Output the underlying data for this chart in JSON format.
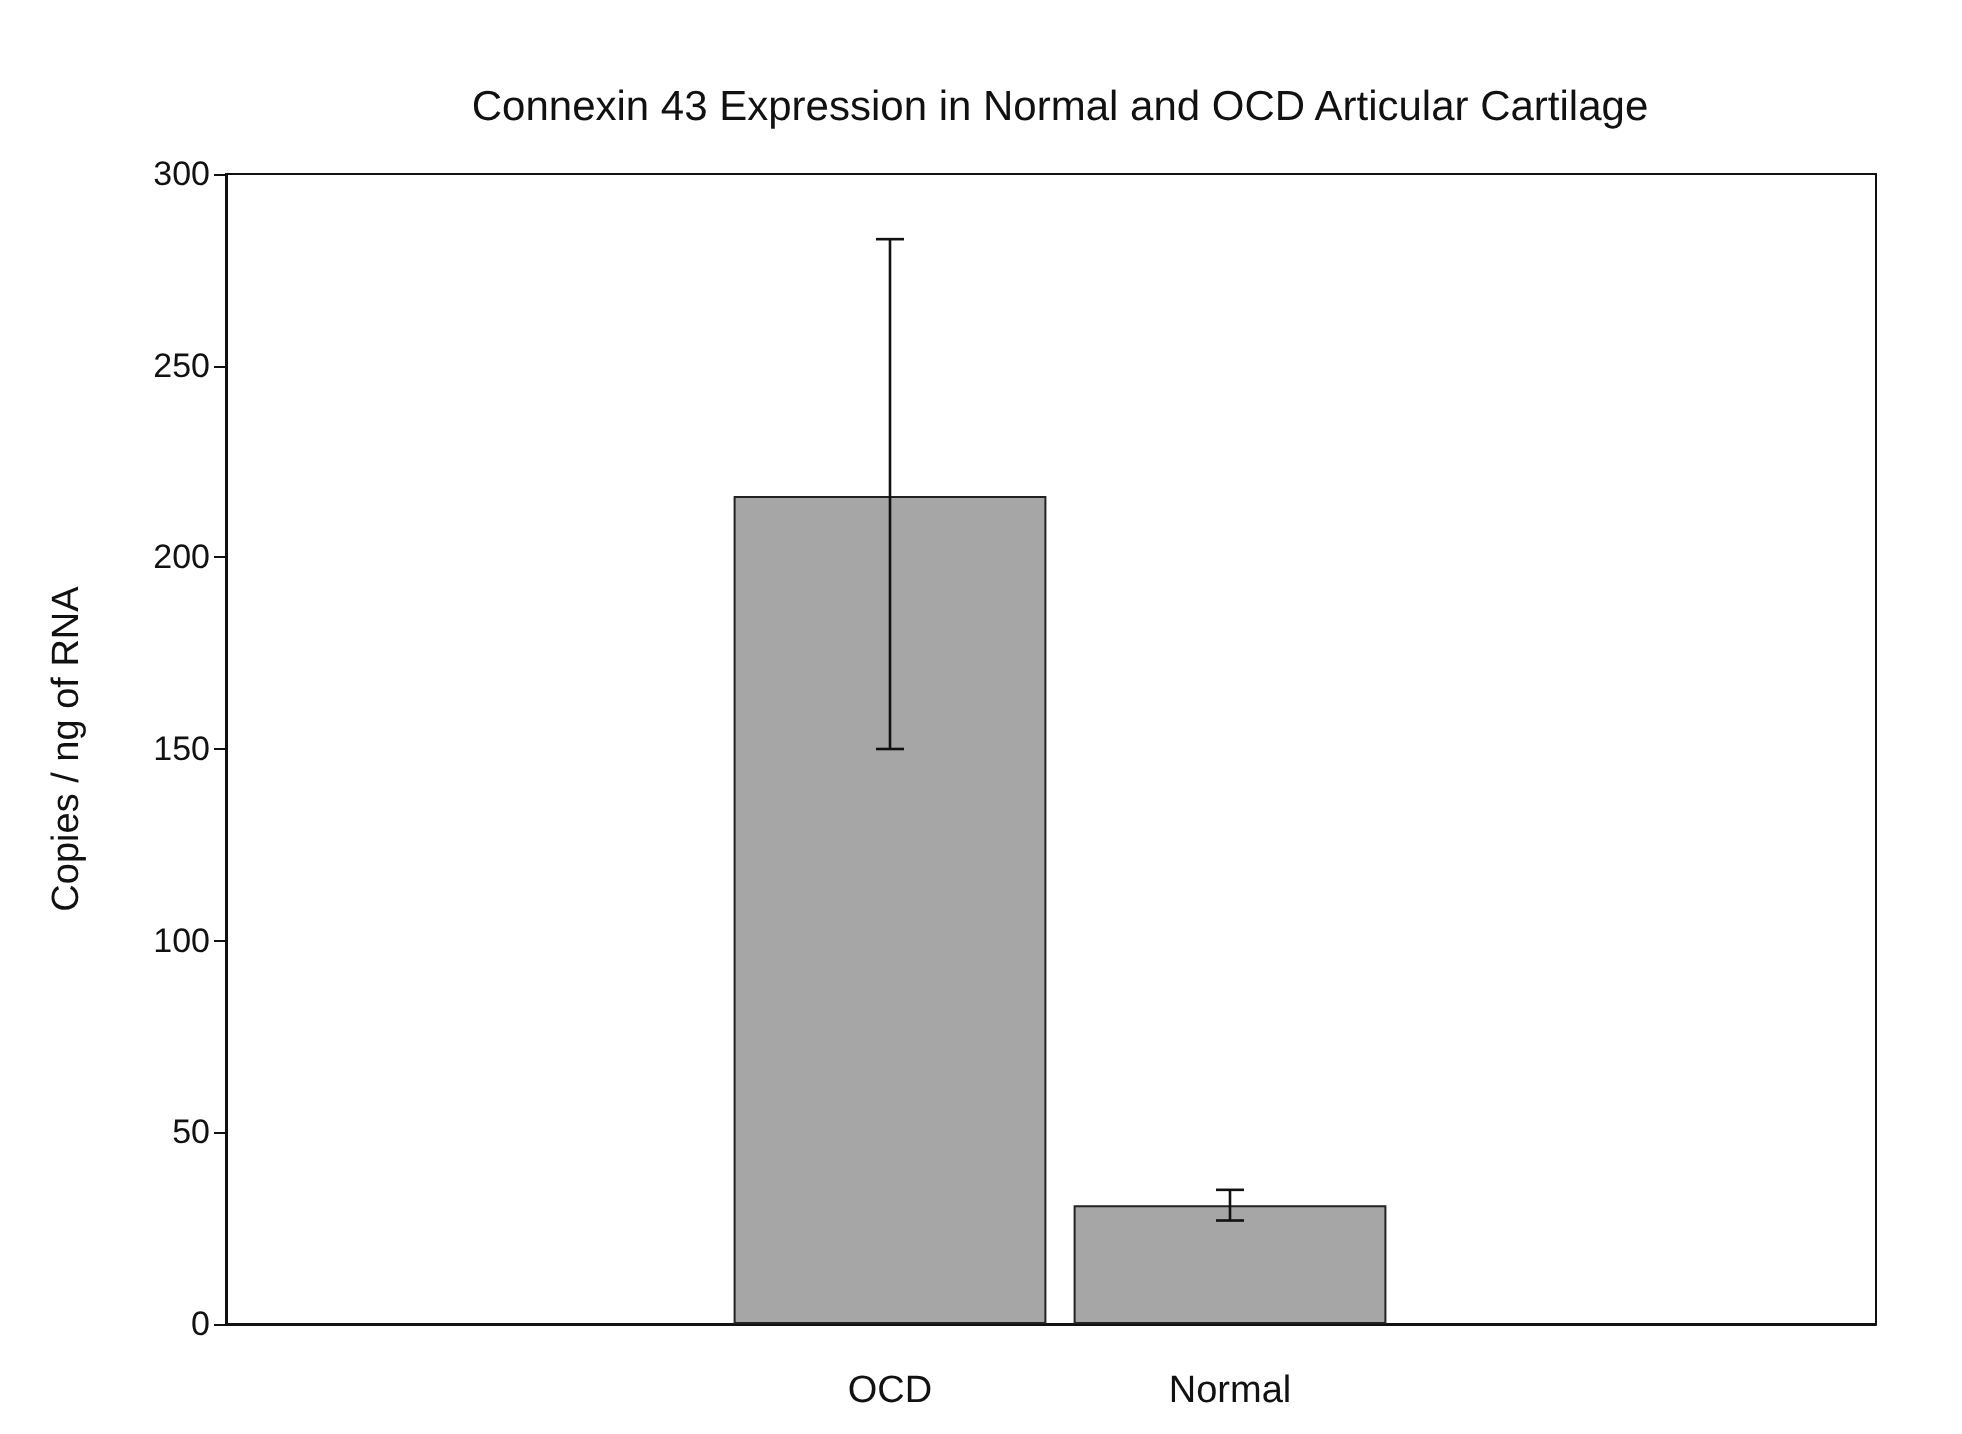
{
  "chart_data": {
    "type": "bar",
    "title": "Connexin 43 Expression in Normal and OCD Articular Cartilage",
    "ylabel": "Copies / ng of RNA",
    "categories": [
      "OCD",
      "Normal"
    ],
    "values": [
      216,
      31
    ],
    "color": "#a6a6a6",
    "errors": [
      [
        150,
        283
      ],
      [
        27,
        35
      ]
    ],
    "ylim": [
      0,
      300
    ],
    "yticks": [
      0,
      50,
      100,
      150,
      200,
      250,
      300
    ]
  }
}
